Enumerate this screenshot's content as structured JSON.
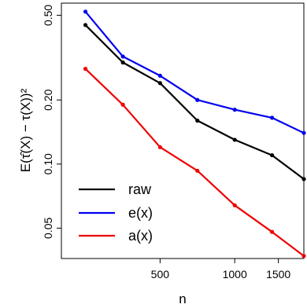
{
  "chart_data": {
    "type": "line",
    "xlabel": "n",
    "ylabel": "E(τ̂(X) − τ(X))²",
    "x_scale": "log",
    "y_scale": "log",
    "xlim": [
      200,
      1900
    ],
    "ylim": [
      0.036,
      0.57
    ],
    "x_ticks": [
      500,
      1000,
      1500
    ],
    "x_tick_labels": [
      "500",
      "1000",
      "1500"
    ],
    "y_ticks": [
      0.05,
      0.1,
      0.2,
      0.5
    ],
    "y_tick_labels": [
      "0.05",
      "0.10",
      "0.20",
      "0.50"
    ],
    "x": [
      250,
      354,
      500,
      707,
      1000,
      1414,
      1900
    ],
    "series": [
      {
        "name": "raw",
        "color": "#000000",
        "values": [
          0.45,
          0.3,
          0.24,
          0.16,
          0.13,
          0.11,
          0.085
        ]
      },
      {
        "name": "e(x)",
        "color": "#0000ee",
        "values": [
          0.52,
          0.32,
          0.26,
          0.2,
          0.18,
          0.165,
          0.14
        ]
      },
      {
        "name": "a(x)",
        "color": "#ee0000",
        "values": [
          0.28,
          0.19,
          0.12,
          0.093,
          0.064,
          0.048,
          0.037
        ]
      }
    ],
    "legend": {
      "position": "bottom-left",
      "entries": [
        "raw",
        "e(x)",
        "a(x)"
      ]
    },
    "grid": false
  }
}
